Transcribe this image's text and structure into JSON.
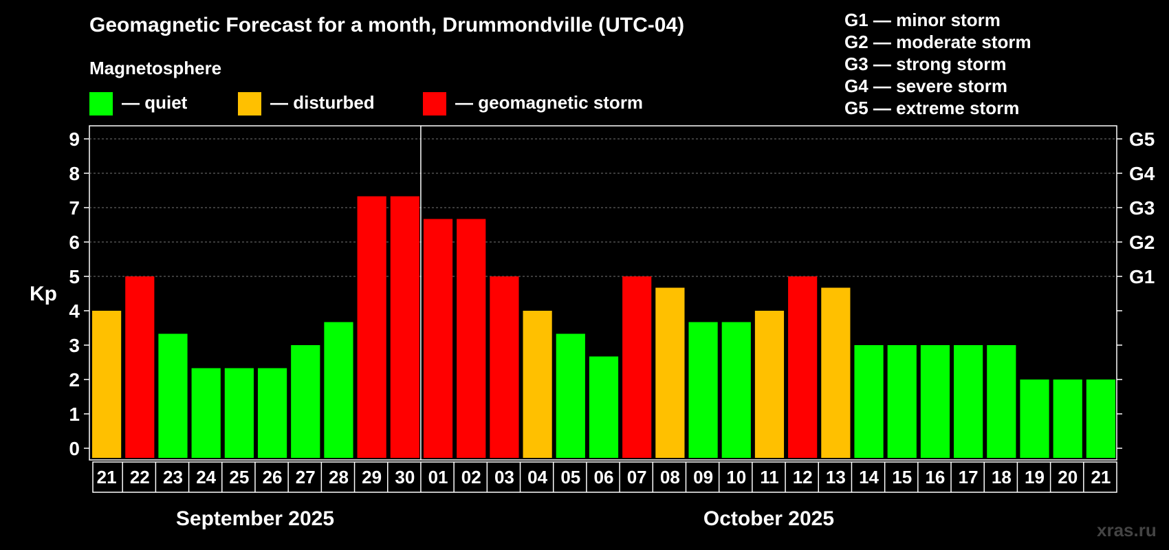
{
  "title": "Geomagnetic Forecast for a month, Drummondville (UTC-04)",
  "magnetosphere_label": "Magnetosphere",
  "legend": {
    "quiet": "— quiet",
    "disturbed": "— disturbed",
    "storm": "— geomagnetic storm"
  },
  "storm_scale": [
    "G1 — minor storm",
    "G2 — moderate storm",
    "G3 — strong storm",
    "G4 — severe storm",
    "G5 — extreme storm"
  ],
  "colors": {
    "quiet": "#00ff00",
    "disturbed": "#ffc000",
    "storm": "#ff0000",
    "background": "#000000",
    "grid": "#777777"
  },
  "watermark": "xras.ru",
  "chart_data": {
    "type": "bar",
    "ylabel": "Kp",
    "ylim": [
      0,
      9
    ],
    "yticks": [
      "0",
      "1",
      "2",
      "3",
      "4",
      "5",
      "6",
      "7",
      "8",
      "9"
    ],
    "right_ticks": [
      {
        "value": 5,
        "label": "G1"
      },
      {
        "value": 6,
        "label": "G2"
      },
      {
        "value": 7,
        "label": "G3"
      },
      {
        "value": 8,
        "label": "G4"
      },
      {
        "value": 9,
        "label": "G5"
      }
    ],
    "months": [
      {
        "label": "September 2025",
        "first_index": 0,
        "last_index": 9
      },
      {
        "label": "October 2025",
        "first_index": 10,
        "last_index": 30
      }
    ],
    "categories": [
      "21",
      "22",
      "23",
      "24",
      "25",
      "26",
      "27",
      "28",
      "29",
      "30",
      "01",
      "02",
      "03",
      "04",
      "05",
      "06",
      "07",
      "08",
      "09",
      "10",
      "11",
      "12",
      "13",
      "14",
      "15",
      "16",
      "17",
      "18",
      "19",
      "20",
      "21"
    ],
    "values": [
      4,
      5,
      3.33,
      2.33,
      2.33,
      2.33,
      3,
      3.67,
      7.33,
      7.33,
      6.67,
      6.67,
      5,
      4,
      3.33,
      2.67,
      5,
      4.67,
      3.67,
      3.67,
      4,
      5,
      4.67,
      3,
      3,
      3,
      3,
      3,
      2,
      2,
      2
    ],
    "status": [
      "disturbed",
      "storm",
      "quiet",
      "quiet",
      "quiet",
      "quiet",
      "quiet",
      "quiet",
      "storm",
      "storm",
      "storm",
      "storm",
      "storm",
      "disturbed",
      "quiet",
      "quiet",
      "storm",
      "disturbed",
      "quiet",
      "quiet",
      "disturbed",
      "storm",
      "disturbed",
      "quiet",
      "quiet",
      "quiet",
      "quiet",
      "quiet",
      "quiet",
      "quiet",
      "quiet"
    ]
  }
}
